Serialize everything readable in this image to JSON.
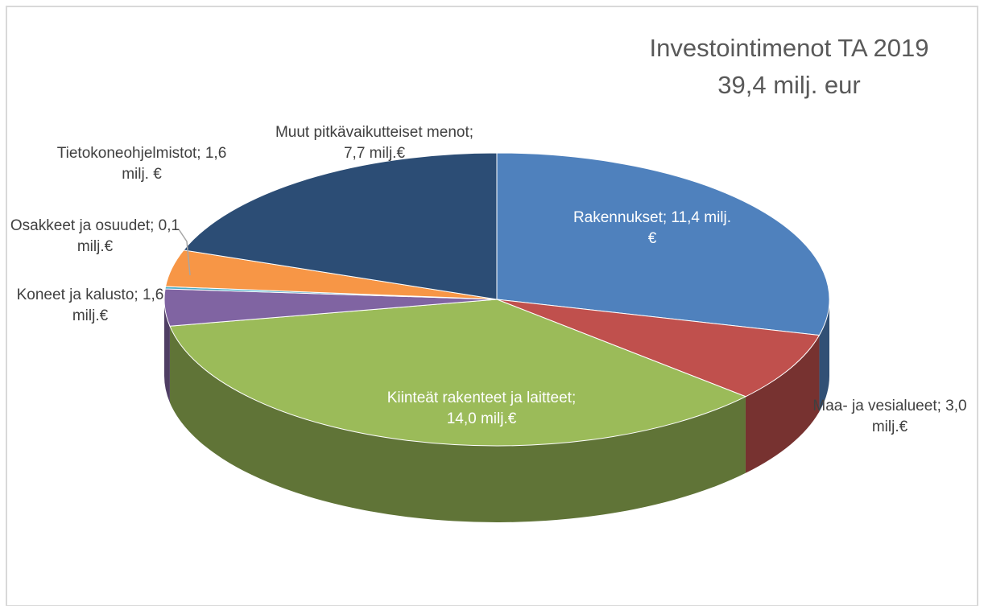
{
  "chart_data": {
    "type": "pie3d",
    "title": "Investointimenot TA 2019",
    "subtitle": "39,4 milj. eur",
    "values": [
      11.4,
      3.0,
      14.0,
      1.6,
      0.1,
      1.6,
      7.7
    ],
    "value_labels": [
      "Rakennukset; 11,4 milj.€",
      "Maa- ja vesialueet; 3,0 milj.€",
      "Kiinteät rakenteet ja laitteet; 14,0 milj.€",
      "Koneet ja kalusto; 1,6 milj.€",
      "Osakkeet ja osuudet; 0,1 milj.€",
      "Tietokoneohjelmistot; 1,6 milj. €",
      "Muut pitkävaikutteiset menot; 7,7 milj.€"
    ],
    "colors": [
      "#4f81bd",
      "#c0504d",
      "#9bbb59",
      "#8064a2",
      "#4bacc6",
      "#f79646",
      "#2c4d75"
    ]
  }
}
